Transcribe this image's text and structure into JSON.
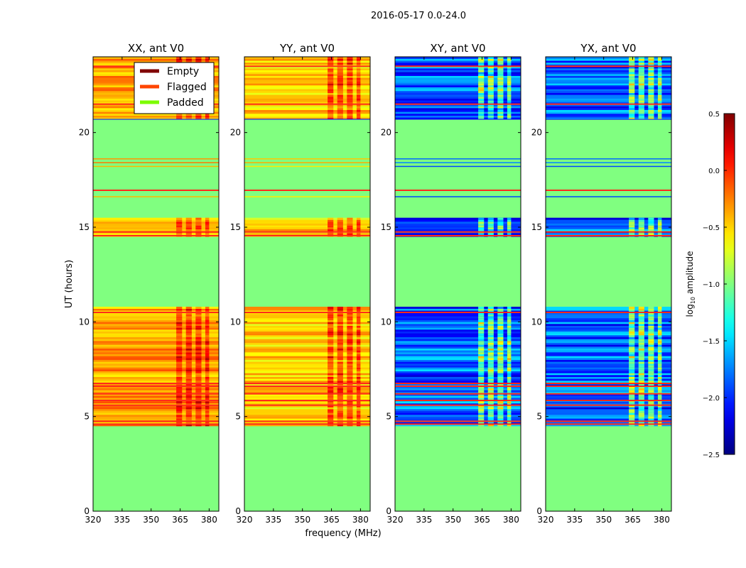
{
  "chart_data": {
    "type": "heatmap",
    "title": "2016-05-17 0.0-24.0",
    "xlabel": "frequency (MHz)",
    "ylabel": "UT (hours)",
    "xlim": [
      320,
      385
    ],
    "ylim": [
      0,
      24
    ],
    "xticks": [
      "320",
      "335",
      "350",
      "365",
      "380"
    ],
    "yticks": [
      "0",
      "5",
      "10",
      "15",
      "20"
    ],
    "panels": [
      {
        "title": "XX, ant V0",
        "base_log_amp": -0.35,
        "spread": 0.25,
        "rfi_boost": 0.35
      },
      {
        "title": "YY, ant V0",
        "base_log_amp": -0.5,
        "spread": 0.25,
        "rfi_boost": 0.4
      },
      {
        "title": "XY, ant V0",
        "base_log_amp": -1.85,
        "spread": 0.4,
        "rfi_boost": 0.8
      },
      {
        "title": "YX, ant V0",
        "base_log_amp": -1.85,
        "spread": 0.4,
        "rfi_boost": 0.8
      }
    ],
    "data_segments_hours": [
      [
        4.5,
        10.8
      ],
      [
        14.5,
        15.5
      ],
      [
        20.7,
        24.0
      ]
    ],
    "sparse_lines_hours": [
      16.6,
      16.95,
      18.2,
      18.4,
      18.6
    ],
    "flagged_rows_hours": [
      4.6,
      4.75,
      5.6,
      5.85,
      6.2,
      6.6,
      6.75,
      10.5,
      14.55,
      14.75,
      16.95,
      21.5,
      23.5
    ],
    "rfi_channels_mhz": [
      [
        363,
        366
      ],
      [
        368,
        371
      ],
      [
        373,
        376
      ],
      [
        378,
        380
      ]
    ],
    "padded_log_amp": -1.0,
    "legend": {
      "position": "upper-right of first panel",
      "entries": [
        {
          "label": "Empty",
          "color": "#800000"
        },
        {
          "label": "Flagged",
          "color": "#ff4500"
        },
        {
          "label": "Padded",
          "color": "#7cfc00"
        }
      ]
    },
    "colorbar": {
      "label": "log10 amplitude",
      "label_main": "log",
      "label_sub": "10",
      "label_rest": " amplitude",
      "range": [
        -2.5,
        0.5
      ],
      "ticks": [
        "0.5",
        "0.0",
        "−0.5",
        "−1.0",
        "−1.5",
        "−2.0",
        "−2.5"
      ]
    }
  }
}
